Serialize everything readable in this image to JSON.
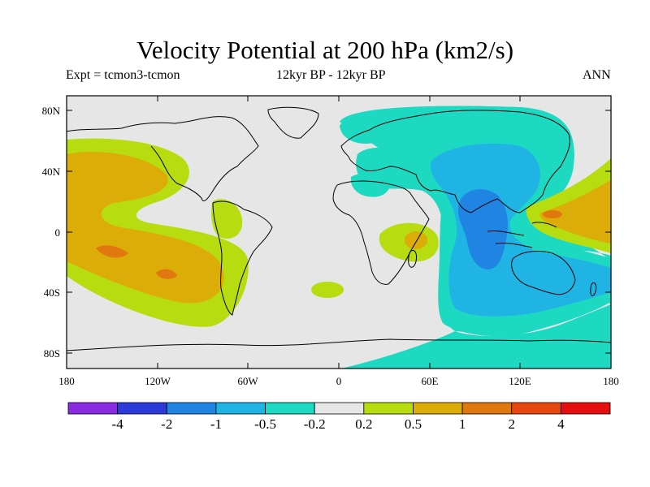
{
  "header": {
    "title": "Velocity Potential at 200 hPa (km2/s)",
    "experiment": "Expt = tcmon3-tcmon",
    "period": "12kyr BP - 12kyr BP",
    "season": "ANN"
  },
  "axes": {
    "y_ticks": [
      "80N",
      "40N",
      "0",
      "40S",
      "80S"
    ],
    "x_ticks": [
      "180",
      "120W",
      "60W",
      "0",
      "60E",
      "120E",
      "180"
    ]
  },
  "colorbar": {
    "colors": [
      "#8a2be2",
      "#2b3ad8",
      "#1f84e2",
      "#1fb4e4",
      "#1dd9c1",
      "#e6e6e6",
      "#b7dc0f",
      "#dcac08",
      "#e0780f",
      "#e6480f",
      "#e60f0f"
    ],
    "labels": [
      "-4",
      "-2",
      "-1",
      "-0.5",
      "-0.2",
      "0.2",
      "0.5",
      "1",
      "2",
      "4"
    ]
  }
}
